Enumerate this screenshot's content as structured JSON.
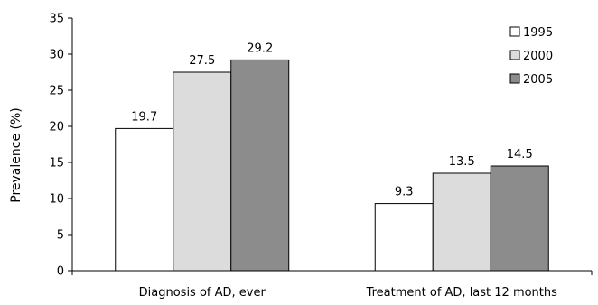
{
  "chart_data": {
    "type": "bar",
    "title": "",
    "xlabel": "",
    "ylabel": "Prevalence (%)",
    "ylim": [
      0,
      35
    ],
    "yticks": [
      0,
      5,
      10,
      15,
      20,
      25,
      30,
      35
    ],
    "grid": false,
    "legend_position": "top-right",
    "categories": [
      "Diagnosis of  AD, ever",
      "Treatment of AD, last 12 months"
    ],
    "series": [
      {
        "name": "1995",
        "color": "#ffffff",
        "values": [
          19.7,
          9.3
        ]
      },
      {
        "name": "2000",
        "color": "#dcdcdc",
        "values": [
          27.5,
          13.5
        ]
      },
      {
        "name": "2005",
        "color": "#8c8c8c",
        "values": [
          29.2,
          14.5
        ]
      }
    ]
  }
}
